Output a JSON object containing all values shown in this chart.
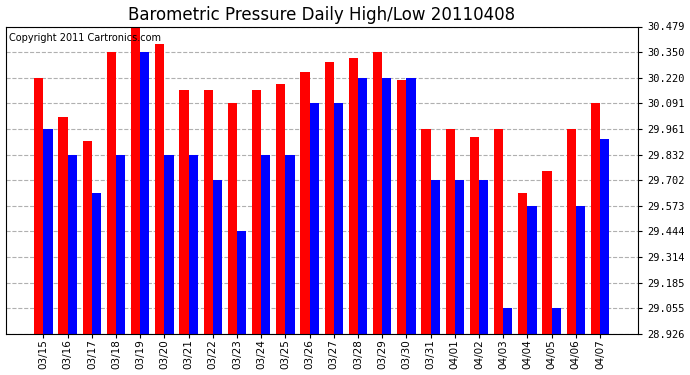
{
  "title": "Barometric Pressure Daily High/Low 20110408",
  "copyright_text": "Copyright 2011 Cartronics.com",
  "dates": [
    "03/15",
    "03/16",
    "03/17",
    "03/18",
    "03/19",
    "03/20",
    "03/21",
    "03/22",
    "03/23",
    "03/24",
    "03/25",
    "03/26",
    "03/27",
    "03/28",
    "03/29",
    "03/30",
    "03/31",
    "04/01",
    "04/02",
    "04/03",
    "04/04",
    "04/05",
    "04/06",
    "04/07"
  ],
  "highs": [
    30.22,
    30.02,
    29.9,
    30.35,
    30.479,
    30.39,
    30.16,
    30.16,
    30.091,
    30.16,
    30.19,
    30.25,
    30.3,
    30.32,
    30.35,
    30.21,
    29.961,
    29.961,
    29.92,
    29.961,
    29.64,
    29.75,
    29.961,
    30.091
  ],
  "lows": [
    29.961,
    29.832,
    29.64,
    29.832,
    30.35,
    29.832,
    29.832,
    29.702,
    29.444,
    29.832,
    29.832,
    30.091,
    30.091,
    30.22,
    30.22,
    30.22,
    29.702,
    29.702,
    29.702,
    29.055,
    29.573,
    29.055,
    29.573,
    29.91
  ],
  "bar_color_high": "#ff0000",
  "bar_color_low": "#0000ff",
  "background_color": "#ffffff",
  "grid_color": "#b0b0b0",
  "yticks": [
    28.926,
    29.055,
    29.185,
    29.314,
    29.444,
    29.573,
    29.702,
    29.832,
    29.961,
    30.091,
    30.22,
    30.35,
    30.479
  ],
  "ymin": 28.926,
  "ymax": 30.479,
  "title_fontsize": 12,
  "tick_fontsize": 7.5,
  "copyright_fontsize": 7
}
